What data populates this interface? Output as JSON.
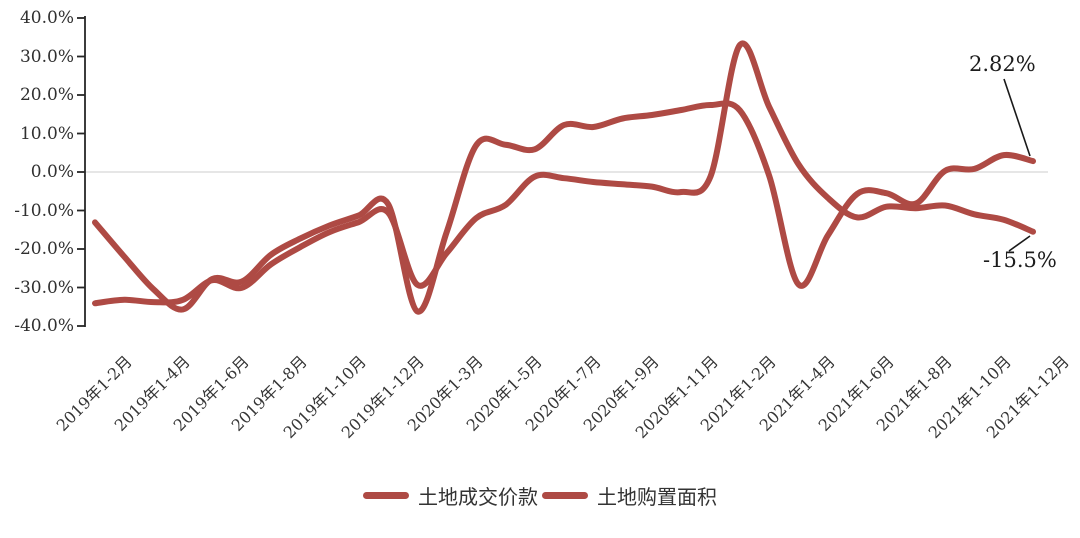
{
  "chart_data": {
    "type": "line",
    "title": "",
    "xlabel": "",
    "ylabel": "",
    "unit": "%",
    "ylim": [
      -40,
      40
    ],
    "grid": "horizontal-zero-line-only",
    "legend_position": "bottom-center",
    "y_ticks": [
      "40.0%",
      "30.0%",
      "20.0%",
      "10.0%",
      "0.0%",
      "-10.0%",
      "-20.0%",
      "-30.0%",
      "-40.0%"
    ],
    "y_tick_values": [
      40,
      30,
      20,
      10,
      0,
      -10,
      -20,
      -30,
      -40
    ],
    "x_tick_every": 2,
    "categories": [
      "2019年1-2月",
      "2019年1-3月",
      "2019年1-4月",
      "2019年1-5月",
      "2019年1-6月",
      "2019年1-7月",
      "2019年1-8月",
      "2019年1-9月",
      "2019年1-10月",
      "2019年1-11月",
      "2019年1-12月",
      "2020年1-2月",
      "2020年1-3月",
      "2020年1-4月",
      "2020年1-5月",
      "2020年1-6月",
      "2020年1-7月",
      "2020年1-8月",
      "2020年1-9月",
      "2020年1-10月",
      "2020年1-11月",
      "2020年1-12月",
      "2021年1-2月",
      "2021年1-3月",
      "2021年1-4月",
      "2021年1-5月",
      "2021年1-6月",
      "2021年1-7月",
      "2021年1-8月",
      "2021年1-9月",
      "2021年1-10月",
      "2021年1-11月",
      "2021年1-12月"
    ],
    "series": [
      {
        "name": "土地成交价款",
        "color": "#ae4a44",
        "values": [
          -13.1,
          -22.0,
          -30.5,
          -35.7,
          -27.8,
          -28.5,
          -21.5,
          -17.3,
          -13.9,
          -11.3,
          -8.3,
          -36.2,
          -15.5,
          6.9,
          7.1,
          5.9,
          12.2,
          11.7,
          13.9,
          14.8,
          16.1,
          17.4,
          16.0,
          -1.0,
          -29.2,
          -16.5,
          -5.7,
          -5.5,
          -8.2,
          0.3,
          0.8,
          4.4,
          2.82
        ]
      },
      {
        "name": "土地购置面积",
        "color": "#ae4a44",
        "values": [
          -34.1,
          -33.2,
          -33.8,
          -33.2,
          -28.1,
          -30.1,
          -24.0,
          -19.5,
          -15.6,
          -13.0,
          -10.5,
          -29.3,
          -21.0,
          -12.0,
          -8.6,
          -1.2,
          -1.6,
          -2.6,
          -3.2,
          -3.8,
          -5.2,
          -1.1,
          33.0,
          16.9,
          2.0,
          -6.7,
          -11.8,
          -9.0,
          -9.4,
          -8.7,
          -11.0,
          -12.4,
          -15.5
        ]
      }
    ],
    "annotations": [
      {
        "text": "2.82%",
        "series": "土地成交价款",
        "category": "2021年1-12月"
      },
      {
        "text": "-15.5%",
        "series": "土地购置面积",
        "category": "2021年1-12月"
      }
    ],
    "colors": {
      "line": "#ae4a44",
      "axis": "#262626",
      "gridline": "#d6d6d6",
      "text": "#333333",
      "background": "#ffffff"
    }
  },
  "legend": {
    "item1": "土地成交价款",
    "item2": "土地购置面积"
  }
}
